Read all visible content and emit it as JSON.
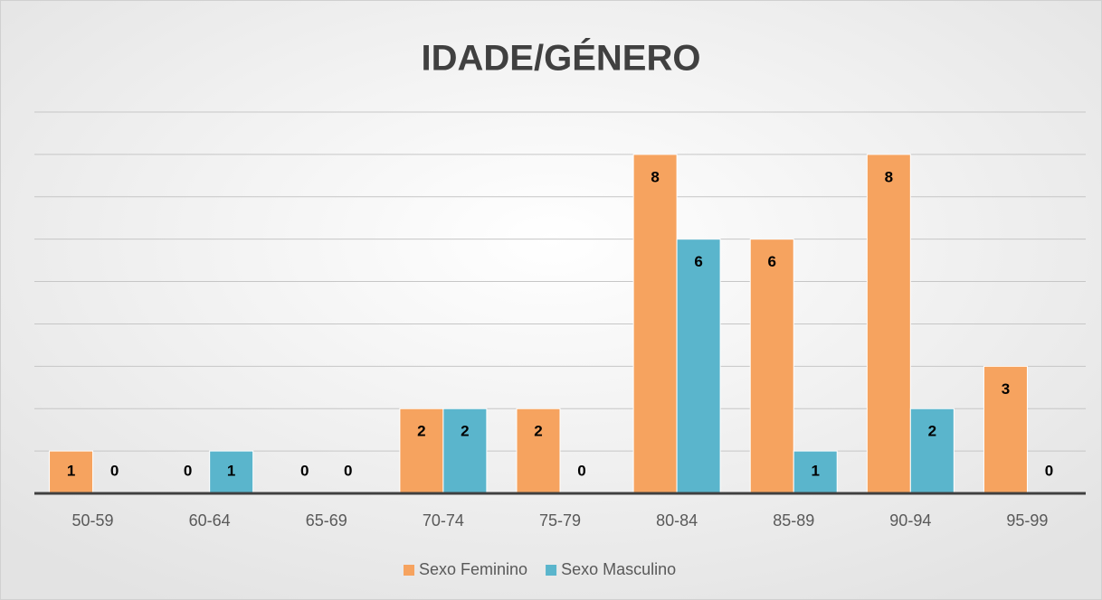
{
  "chart_data": {
    "type": "bar",
    "title": "IDADE/GÉNERO",
    "categories": [
      "50-59",
      "60-64",
      "65-69",
      "70-74",
      "75-79",
      "80-84",
      "85-89",
      "90-94",
      "95-99"
    ],
    "series": [
      {
        "name": "Sexo Feminino",
        "color": "#f6a35f",
        "values": [
          1,
          0,
          0,
          2,
          2,
          8,
          6,
          8,
          3
        ]
      },
      {
        "name": "Sexo Masculino",
        "color": "#5ab5cc",
        "values": [
          0,
          1,
          0,
          2,
          0,
          6,
          1,
          2,
          0
        ]
      }
    ],
    "ylim": [
      0,
      9
    ],
    "yticks": [
      0,
      1,
      2,
      3,
      4,
      5,
      6,
      7,
      8,
      9
    ],
    "y_tick_labels": false,
    "grid": true,
    "legend": "bottom"
  }
}
